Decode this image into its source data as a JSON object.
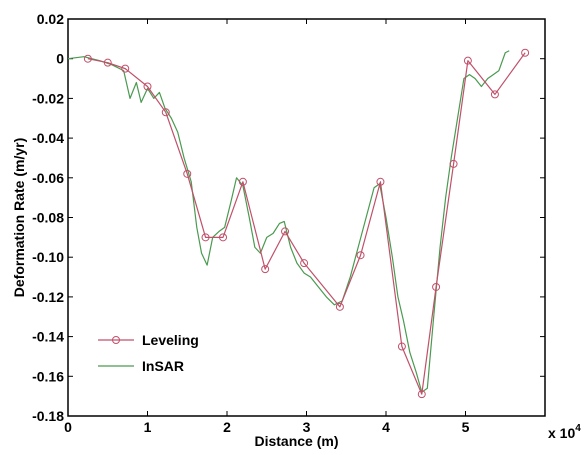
{
  "chart_data": {
    "type": "line",
    "xlabel": "Distance (m)",
    "ylabel": "Deformation Rate (m/yr)",
    "x_multiplier_label": "x 10",
    "x_multiplier_exp": "4",
    "xlim": [
      0,
      6
    ],
    "ylim": [
      -0.18,
      0.02
    ],
    "x_ticks": [
      {
        "value": 0,
        "label": "0"
      },
      {
        "value": 1,
        "label": "1"
      },
      {
        "value": 2,
        "label": "2"
      },
      {
        "value": 3,
        "label": "3"
      },
      {
        "value": 4,
        "label": "4"
      },
      {
        "value": 5,
        "label": "5"
      }
    ],
    "y_ticks": [
      {
        "value": 0.02,
        "label": "0.02"
      },
      {
        "value": 0,
        "label": "0"
      },
      {
        "value": -0.02,
        "label": "-0.02"
      },
      {
        "value": -0.04,
        "label": "-0.04"
      },
      {
        "value": -0.06,
        "label": "-0.06"
      },
      {
        "value": -0.08,
        "label": "-0.08"
      },
      {
        "value": -0.1,
        "label": "-0.10"
      },
      {
        "value": -0.12,
        "label": "-0.12"
      },
      {
        "value": -0.14,
        "label": "-0.14"
      },
      {
        "value": -0.16,
        "label": "-0.16"
      },
      {
        "value": -0.18,
        "label": "-0.18"
      }
    ],
    "grid": false,
    "legend_position": "bottom-left",
    "series": [
      {
        "name": "Leveling",
        "color": "#c0506a",
        "marker": "circle",
        "x": [
          0.25,
          0.5,
          0.72,
          1.0,
          1.23,
          1.5,
          1.73,
          1.95,
          2.2,
          2.48,
          2.73,
          2.97,
          3.42,
          3.68,
          3.93,
          4.2,
          4.45,
          4.63,
          4.85,
          5.03,
          5.37,
          5.75
        ],
        "y": [
          0.0,
          -0.002,
          -0.005,
          -0.014,
          -0.027,
          -0.058,
          -0.09,
          -0.09,
          -0.062,
          -0.106,
          -0.087,
          -0.103,
          -0.125,
          -0.099,
          -0.062,
          -0.145,
          -0.169,
          -0.115,
          -0.053,
          -0.001,
          -0.018,
          0.003
        ]
      },
      {
        "name": "InSAR",
        "color": "#4a9a50",
        "marker": "none",
        "x": [
          0,
          0.2,
          0.4,
          0.55,
          0.7,
          0.78,
          0.86,
          0.92,
          1.0,
          1.08,
          1.15,
          1.22,
          1.3,
          1.38,
          1.46,
          1.55,
          1.62,
          1.68,
          1.75,
          1.82,
          1.9,
          1.97,
          2.05,
          2.12,
          2.2,
          2.28,
          2.35,
          2.42,
          2.5,
          2.58,
          2.66,
          2.72,
          2.8,
          2.88,
          2.97,
          3.05,
          3.15,
          3.25,
          3.35,
          3.45,
          3.55,
          3.65,
          3.75,
          3.85,
          3.92,
          4.0,
          4.08,
          4.15,
          4.22,
          4.3,
          4.38,
          4.45,
          4.52,
          4.6,
          4.68,
          4.75,
          4.82,
          4.9,
          4.98,
          5.05,
          5.12,
          5.2,
          5.28,
          5.35,
          5.42,
          5.5,
          5.55
        ],
        "y": [
          0.0,
          0.001,
          -0.001,
          -0.003,
          -0.006,
          -0.02,
          -0.012,
          -0.022,
          -0.015,
          -0.02,
          -0.017,
          -0.025,
          -0.03,
          -0.037,
          -0.05,
          -0.062,
          -0.085,
          -0.098,
          -0.104,
          -0.09,
          -0.087,
          -0.085,
          -0.072,
          -0.06,
          -0.064,
          -0.08,
          -0.095,
          -0.098,
          -0.09,
          -0.088,
          -0.083,
          -0.082,
          -0.095,
          -0.103,
          -0.108,
          -0.11,
          -0.115,
          -0.12,
          -0.124,
          -0.122,
          -0.11,
          -0.095,
          -0.08,
          -0.065,
          -0.063,
          -0.08,
          -0.1,
          -0.12,
          -0.132,
          -0.148,
          -0.158,
          -0.168,
          -0.166,
          -0.13,
          -0.095,
          -0.07,
          -0.05,
          -0.03,
          -0.01,
          -0.008,
          -0.01,
          -0.014,
          -0.01,
          -0.008,
          -0.006,
          0.003,
          0.004
        ]
      }
    ]
  }
}
